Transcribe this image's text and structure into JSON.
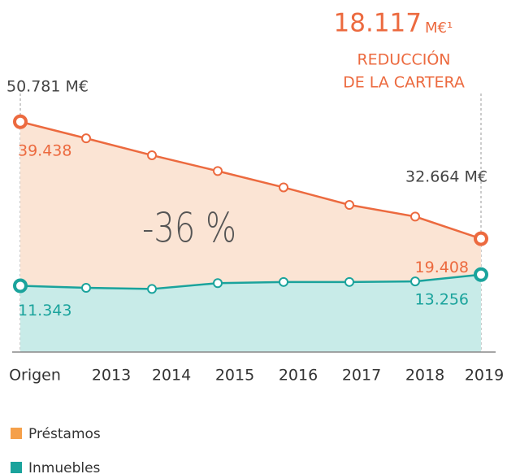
{
  "chart_data": {
    "type": "area",
    "categories": [
      "Origen",
      "2013",
      "2014",
      "2015",
      "2016",
      "2017",
      "2018",
      "2019"
    ],
    "series": [
      {
        "name": "Préstamos",
        "color": "#ec6a3f",
        "fill": "#fbe4d4",
        "legend_color": "#f5a04a",
        "values": [
          39438,
          36600,
          33700,
          31000,
          28200,
          25200,
          23200,
          19408
        ],
        "value_labels": [
          "39.438",
          null,
          null,
          null,
          null,
          null,
          null,
          "19.408"
        ]
      },
      {
        "name": "Inmuebles",
        "color": "#1aa39c",
        "fill": "#c8ebe8",
        "legend_color": "#1aa39c",
        "values": [
          11343,
          11000,
          10800,
          11800,
          12000,
          12000,
          12100,
          13256
        ],
        "value_labels": [
          "11.343",
          null,
          null,
          null,
          null,
          null,
          null,
          "13.256"
        ]
      }
    ],
    "ylim": [
      0,
      55000
    ],
    "annotations": {
      "reduction_value": "18.117",
      "reduction_unit": "M€¹",
      "reduction_line1": "REDUCCIÓN",
      "reduction_line2": "DE LA CARTERA",
      "start_total": "50.781 M€",
      "end_total": "32.664 M€",
      "change": "-36 %"
    }
  }
}
